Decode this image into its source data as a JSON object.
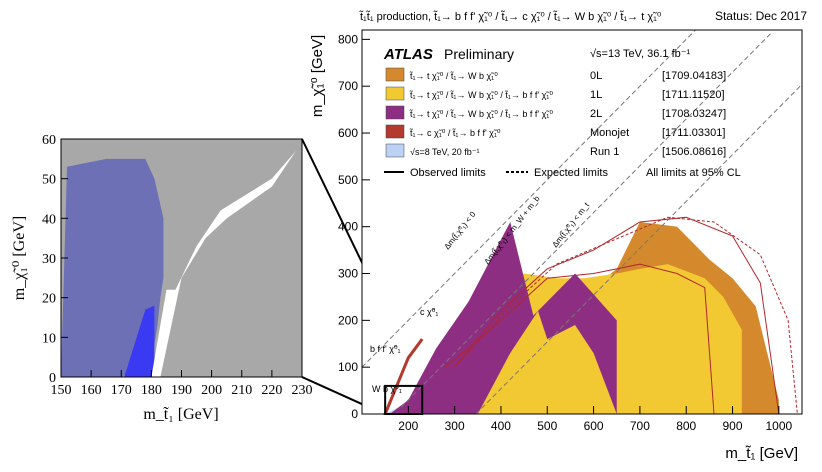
{
  "chart_data": [
    {
      "type": "area",
      "title": "t̃₁t̃₁ production, t̃₁→ b f f' χ̃₁⁰ / t̃₁→ c χ̃₁⁰ / t̃₁→ W b χ̃₁⁰ / t̃₁→ t χ̃₁⁰",
      "status": "Status: Dec 2017",
      "experiment": "ATLAS",
      "experiment_tag": "Preliminary",
      "energy_lumi": "√s=13 TeV, 36.1 fb⁻¹",
      "xlabel": "m_t̃₁ [GeV]",
      "ylabel": "m_χ̃₁⁰ [GeV]",
      "xlim": [
        100,
        1050
      ],
      "ylim": [
        0,
        820
      ],
      "xticks": [
        200,
        300,
        400,
        500,
        600,
        700,
        800,
        900,
        1000
      ],
      "yticks": [
        0,
        100,
        200,
        300,
        400,
        500,
        600,
        700,
        800
      ],
      "legend": [
        {
          "label": "t̃₁→ t χ̃₁⁰ / t̃₁→ W b χ̃₁⁰",
          "analysis": "0L",
          "ref": "[1709.04183]",
          "color": "#d48a2c"
        },
        {
          "label": "t̃₁→ t χ̃₁⁰ / t̃₁→ W b χ̃₁⁰ / t̃₁→ b f f' χ̃₁⁰",
          "analysis": "1L",
          "ref": "[1711.11520]",
          "color": "#f2c932"
        },
        {
          "label": "t̃₁→ t χ̃₁⁰ / t̃₁→ W b χ̃₁⁰ / t̃₁→ b f f' χ̃₁⁰",
          "analysis": "2L",
          "ref": "[1708.03247]",
          "color": "#8e2e83"
        },
        {
          "label": "t̃₁→ c χ̃₁⁰ / t̃₁→ b f f' χ̃₁⁰",
          "analysis": "Monojet",
          "ref": "[1711.03301]",
          "color": "#b23a2e"
        },
        {
          "label": "√s=8 TeV, 20 fb⁻¹",
          "analysis": "Run 1",
          "ref": "[1506.08616]",
          "color": "#bcd2f5"
        }
      ],
      "line_legend": {
        "observed": "Observed limits",
        "expected": "Expected limits",
        "cl": "All limits at 95% CL"
      },
      "annotations": [
        "Δm(t̃,χ̃⁰₁) < 0",
        "Δm(t̃,χ̃⁰₁) < m_t",
        "Δm(t̃,χ̃⁰₁) < m_W + m_b",
        "c χ̃⁰₁",
        "b f f' χ̃⁰₁",
        "W b χ̃⁰₁"
      ],
      "series": [
        {
          "name": "Run 1",
          "color": "#bcd2f5",
          "x": [
            150,
            180,
            220,
            300,
            400,
            500,
            600,
            650,
            700,
            700
          ],
          "y": [
            0,
            15,
            40,
            90,
            170,
            240,
            290,
            290,
            250,
            0
          ]
        },
        {
          "name": "0L",
          "color": "#d48a2c",
          "x": [
            230,
            300,
            400,
            500,
            600,
            650,
            700,
            780,
            850,
            900,
            950,
            980,
            1000,
            1000,
            960,
            900,
            800,
            700
          ],
          "y": [
            0,
            60,
            160,
            240,
            270,
            310,
            410,
            400,
            330,
            290,
            230,
            110,
            30,
            0,
            0,
            0,
            0,
            0
          ]
        },
        {
          "name": "1L",
          "color": "#f2c932",
          "x": [
            200,
            250,
            330,
            400,
            450,
            520,
            580,
            650,
            700,
            760,
            840,
            880,
            920,
            920,
            880,
            800,
            700
          ],
          "y": [
            0,
            60,
            180,
            250,
            300,
            290,
            290,
            300,
            310,
            320,
            290,
            250,
            180,
            0,
            0,
            0,
            0
          ]
        },
        {
          "name": "2L",
          "color": "#8e2e83",
          "x": [
            160,
            200,
            260,
            330,
            420,
            470,
            560,
            650,
            650,
            600,
            560,
            500,
            480,
            420,
            350
          ],
          "y": [
            0,
            30,
            140,
            240,
            410,
            210,
            300,
            200,
            0,
            130,
            190,
            160,
            220,
            130,
            0
          ]
        },
        {
          "name": "Monojet",
          "color": "#b23a2e",
          "x": [
            150,
            175,
            200,
            230
          ],
          "y": [
            0,
            60,
            120,
            160
          ]
        }
      ],
      "observed_contours": [
        {
          "x": [
            300,
            400,
            500,
            600,
            700,
            800,
            900,
            960,
            1000
          ],
          "y": [
            100,
            220,
            310,
            350,
            410,
            420,
            380,
            280,
            0
          ]
        },
        {
          "x": [
            280,
            400,
            500,
            600,
            700,
            780,
            840,
            860
          ],
          "y": [
            100,
            200,
            290,
            300,
            320,
            300,
            270,
            0
          ]
        }
      ],
      "expected_contours": [
        {
          "x": [
            300,
            420,
            520,
            640,
            760,
            860,
            960,
            1020,
            1040
          ],
          "y": [
            100,
            230,
            320,
            370,
            420,
            410,
            340,
            200,
            0
          ]
        }
      ],
      "diagonals": [
        {
          "label": "Δm < 0",
          "offset": 0
        },
        {
          "label": "Δm < m_t",
          "offset": 173
        },
        {
          "label": "Δm < m_W + m_b",
          "offset": 85
        }
      ],
      "zoom_box": {
        "xlim": [
          150,
          230
        ],
        "ylim": [
          0,
          60
        ]
      }
    },
    {
      "type": "area",
      "title": "",
      "xlabel": "m_t̃₁ [GeV]",
      "ylabel": "m_χ̃₁⁰ [GeV]",
      "xlim": [
        150,
        230
      ],
      "ylim": [
        0,
        60
      ],
      "xticks": [
        150,
        160,
        170,
        180,
        190,
        200,
        210,
        220,
        230
      ],
      "yticks": [
        0,
        10,
        20,
        30,
        40,
        50,
        60
      ],
      "series": [
        {
          "name": "excluded (grey)",
          "color": "#a8a8a8",
          "x": [
            150,
            230,
            230,
            150
          ],
          "y": [
            0,
            0,
            60,
            60
          ]
        },
        {
          "name": "Run 1 / Monojet region",
          "color": "#6d70b5",
          "x": [
            150,
            152,
            165,
            178,
            181,
            184,
            184,
            183,
            182,
            181,
            179,
            175,
            170,
            150
          ],
          "y": [
            0,
            53,
            55,
            55,
            50,
            40,
            25,
            20,
            13,
            8,
            5,
            2,
            0,
            0
          ]
        },
        {
          "name": "bright blue",
          "color": "#3a3af2",
          "x": [
            171,
            178,
            181,
            181,
            175
          ],
          "y": [
            0,
            17,
            18,
            0,
            0
          ]
        },
        {
          "name": "allowed white strip",
          "color": "#ffffff",
          "x": [
            180,
            185,
            188,
            195,
            203,
            220,
            228,
            220,
            205,
            198,
            190,
            183
          ],
          "y": [
            0,
            22,
            22,
            33,
            42,
            50,
            57,
            48,
            40,
            35,
            25,
            0
          ]
        }
      ]
    }
  ]
}
